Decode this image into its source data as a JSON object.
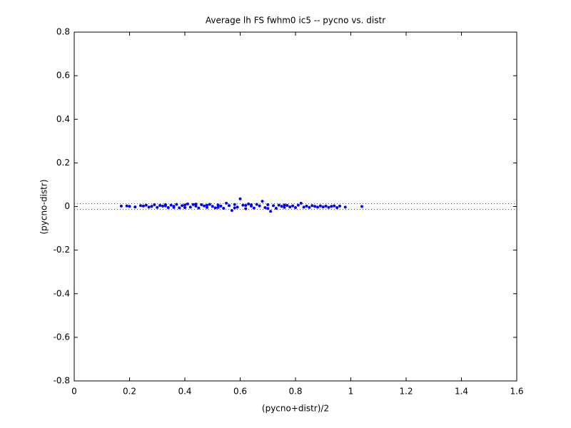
{
  "chart_data": {
    "type": "scatter",
    "title": "Average lh FS fwhm0 ic5 -- pycno vs. distr",
    "x_label": "(pycno+distr)/2",
    "y_label": "(pycno-distr)",
    "color": "#0000ff",
    "x": [
      0.17,
      0.19,
      0.2,
      0.22,
      0.24,
      0.25,
      0.26,
      0.27,
      0.28,
      0.29,
      0.3,
      0.31,
      0.32,
      0.33,
      0.34,
      0.35,
      0.36,
      0.37,
      0.38,
      0.39,
      0.4,
      0.41,
      0.42,
      0.43,
      0.44,
      0.45,
      0.46,
      0.47,
      0.48,
      0.49,
      0.5,
      0.51,
      0.52,
      0.53,
      0.54,
      0.55,
      0.56,
      0.57,
      0.58,
      0.59,
      0.6,
      0.61,
      0.62,
      0.63,
      0.64,
      0.65,
      0.66,
      0.67,
      0.68,
      0.69,
      0.7,
      0.71,
      0.72,
      0.73,
      0.74,
      0.75,
      0.76,
      0.77,
      0.78,
      0.79,
      0.8,
      0.81,
      0.82,
      0.83,
      0.84,
      0.85,
      0.86,
      0.87,
      0.88,
      0.89,
      0.9,
      0.91,
      0.92,
      0.93,
      0.94,
      0.95,
      0.96,
      0.98,
      1.04,
      0.36,
      0.44,
      0.48,
      0.52,
      0.58,
      0.64,
      0.7,
      0.76,
      0.4,
      0.33,
      0.62
    ],
    "values": [
      0.002,
      0.003,
      0.001,
      -0.002,
      0.004,
      0.002,
      0.006,
      -0.003,
      0.001,
      0.008,
      -0.004,
      0.005,
      0.002,
      0.009,
      -0.005,
      0.006,
      0.001,
      0.01,
      -0.006,
      0.004,
      0.007,
      0.012,
      -0.003,
      0.009,
      0.002,
      -0.007,
      0.008,
      0.003,
      -0.004,
      0.01,
      0.001,
      -0.006,
      0.007,
      0.002,
      -0.008,
      0.015,
      0.004,
      -0.018,
      0.009,
      -0.003,
      0.035,
      0.006,
      -0.01,
      0.012,
      0.002,
      -0.007,
      0.01,
      0.003,
      0.024,
      -0.005,
      0.008,
      -0.022,
      0.004,
      -0.008,
      0.006,
      0.001,
      -0.004,
      0.005,
      -0.002,
      0.003,
      -0.005,
      0.006,
      0.015,
      -0.003,
      0.002,
      -0.004,
      0.004,
      0.001,
      -0.003,
      0.003,
      -0.002,
      0.002,
      -0.004,
      0.001,
      0.003,
      -0.005,
      0.002,
      -0.003,
      0.0,
      -0.004,
      0.011,
      0.006,
      -0.004,
      -0.006,
      0.008,
      -0.009,
      0.007,
      -0.005,
      0.003,
      0.005
    ],
    "reference_lines": [
      0.013,
      -0.013
    ],
    "reference_color": "#ff0000",
    "xlim": [
      0,
      1.6
    ],
    "xticks": [
      0,
      0.2,
      0.4,
      0.6,
      0.8,
      1,
      1.2,
      1.4,
      1.6
    ],
    "ylim": [
      -0.8,
      0.8
    ],
    "yticks": [
      -0.8,
      -0.6,
      -0.4,
      -0.2,
      0,
      0.2,
      0.4,
      0.6,
      0.8
    ]
  }
}
